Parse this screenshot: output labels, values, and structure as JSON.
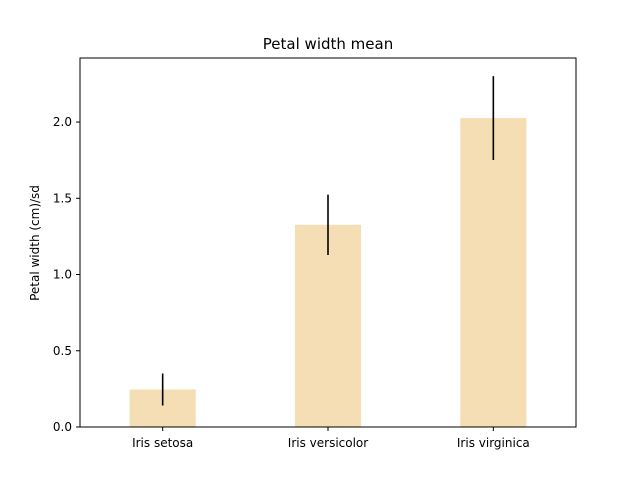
{
  "chart_data": {
    "type": "bar",
    "title": "Petal width mean",
    "xlabel": "",
    "ylabel": "Petal width (cm)/sd",
    "categories": [
      "Iris setosa",
      "Iris versicolor",
      "Iris virginica"
    ],
    "values": [
      0.246,
      1.326,
      2.026
    ],
    "errors": [
      0.105,
      0.198,
      0.275
    ],
    "ylim": [
      0,
      2.42
    ],
    "yticks": [
      0.0,
      0.5,
      1.0,
      1.5,
      2.0
    ],
    "ytick_labels": [
      "0.0",
      "0.5",
      "1.0",
      "1.5",
      "2.0"
    ],
    "grid": false,
    "bar_color": "#f5deb3",
    "error_color": "#000000"
  }
}
